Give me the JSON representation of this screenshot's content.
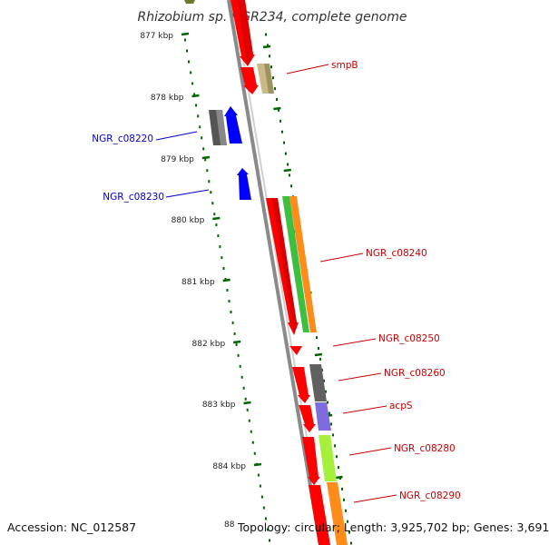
{
  "title": "Rhizobium sp. NGR234, complete genome",
  "footer": {
    "accession": "Accession: NC_012587",
    "stats": "Topology: circular; Length: 3,925,702 bp; Genes: 3,691",
    "partial_tick": "88"
  },
  "ticks": [
    {
      "label": "877 kbp"
    },
    {
      "label": "878 kbp"
    },
    {
      "label": "879 kbp"
    },
    {
      "label": "880 kbp"
    },
    {
      "label": "881 kbp"
    },
    {
      "label": "882 kbp"
    },
    {
      "label": "883 kbp"
    },
    {
      "label": "884 kbp"
    }
  ],
  "gene_labels": [
    {
      "text": "smpB",
      "color": "#cc0000"
    },
    {
      "text": "NGR_c08220",
      "color": "#0000cc"
    },
    {
      "text": "NGR_c08230",
      "color": "#0000cc"
    },
    {
      "text": "NGR_c08240",
      "color": "#cc0000"
    },
    {
      "text": "NGR_c08250",
      "color": "#cc0000"
    },
    {
      "text": "NGR_c08260",
      "color": "#cc0000"
    },
    {
      "text": "acpS",
      "color": "#cc0000"
    },
    {
      "text": "NGR_c08280",
      "color": "#cc0000"
    },
    {
      "text": "NGR_c08290",
      "color": "#cc0000"
    }
  ],
  "colors": {
    "forward_cds": "#ff0000",
    "reverse_cds": "#0000ff",
    "tick_mark": "#006600",
    "backbone": "#888888"
  }
}
